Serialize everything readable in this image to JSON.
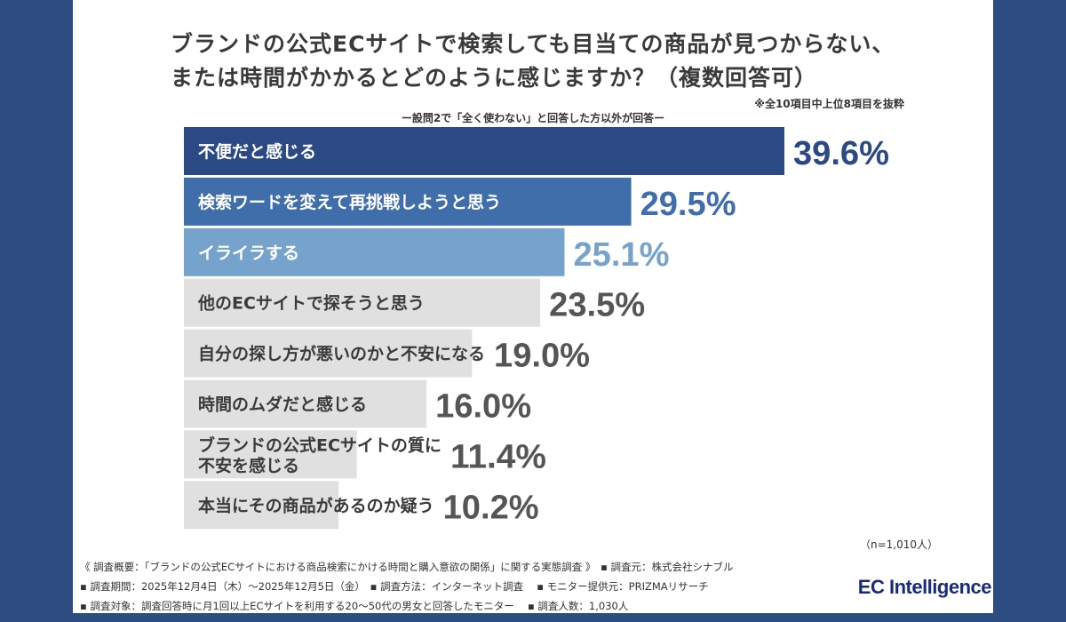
{
  "chart_data": {
    "type": "bar",
    "orientation": "horizontal",
    "title": "ブランドの公式ECサイトで検索しても目当ての商品が見つからない、または時間がかかるとどのように感じますか？（複数回答可）",
    "title_lines": [
      "ブランドの公式ECサイトで検索しても目当ての商品が見つからない、",
      "または時間がかかるとどのように感じますか？（複数回答可）"
    ],
    "note": "※全10項目中上位8項目を抜粋",
    "subtitle": "ー設問2で「全く使わない」と回答した方以外が回答ー",
    "categories": [
      [
        "不便だと感じる"
      ],
      [
        "検索ワードを変えて再挑戦しようと思う"
      ],
      [
        "イライラする"
      ],
      [
        "他のECサイトで探そうと思う"
      ],
      [
        "自分の探し方が悪いのかと不安になる"
      ],
      [
        "時間のムダだと感じる"
      ],
      [
        "ブランドの公式ECサイトの質に",
        "不安を感じる"
      ],
      [
        "本当にその商品があるのか疑う"
      ]
    ],
    "values": [
      39.6,
      29.5,
      25.1,
      23.5,
      19.0,
      16.0,
      11.4,
      10.2
    ],
    "value_labels": [
      "39.6%",
      "29.5%",
      "25.1%",
      "23.5%",
      "19.0%",
      "16.0%",
      "11.4%",
      "10.2%"
    ],
    "unit": "%",
    "bar_colors": [
      "#2b4a85",
      "#3f6eaa",
      "#76a3cc",
      "#e0e0e0",
      "#e0e0e0",
      "#e0e0e0",
      "#e0e0e0",
      "#e0e0e0"
    ],
    "value_colors": [
      "#2b4a85",
      "#3f6eaa",
      "#76a3cc",
      "#555555",
      "#555555",
      "#555555",
      "#555555",
      "#555555"
    ],
    "grid": false
  },
  "sample_note": "（n=1,010人）",
  "footer": {
    "line1": "《 調査概要：「ブランドの公式ECサイトにおける商品検索にかける時間と購入意欲の関係」に関する実態調査 》　▪ 調査元：株式会社シナブル",
    "line2": "▪ 調査期間：2025年12月4日（木）～2025年12月5日（金）　▪ 調査方法：インターネット調査　 ▪ モニター提供元：PRIZMAリサーチ",
    "line3": "▪ 調査対象：調査回答時に月1回以上ECサイトを利用する20～50代の男女と回答したモニター　 ▪ 調査人数：1,030人"
  },
  "logo": "EC Intelligence"
}
